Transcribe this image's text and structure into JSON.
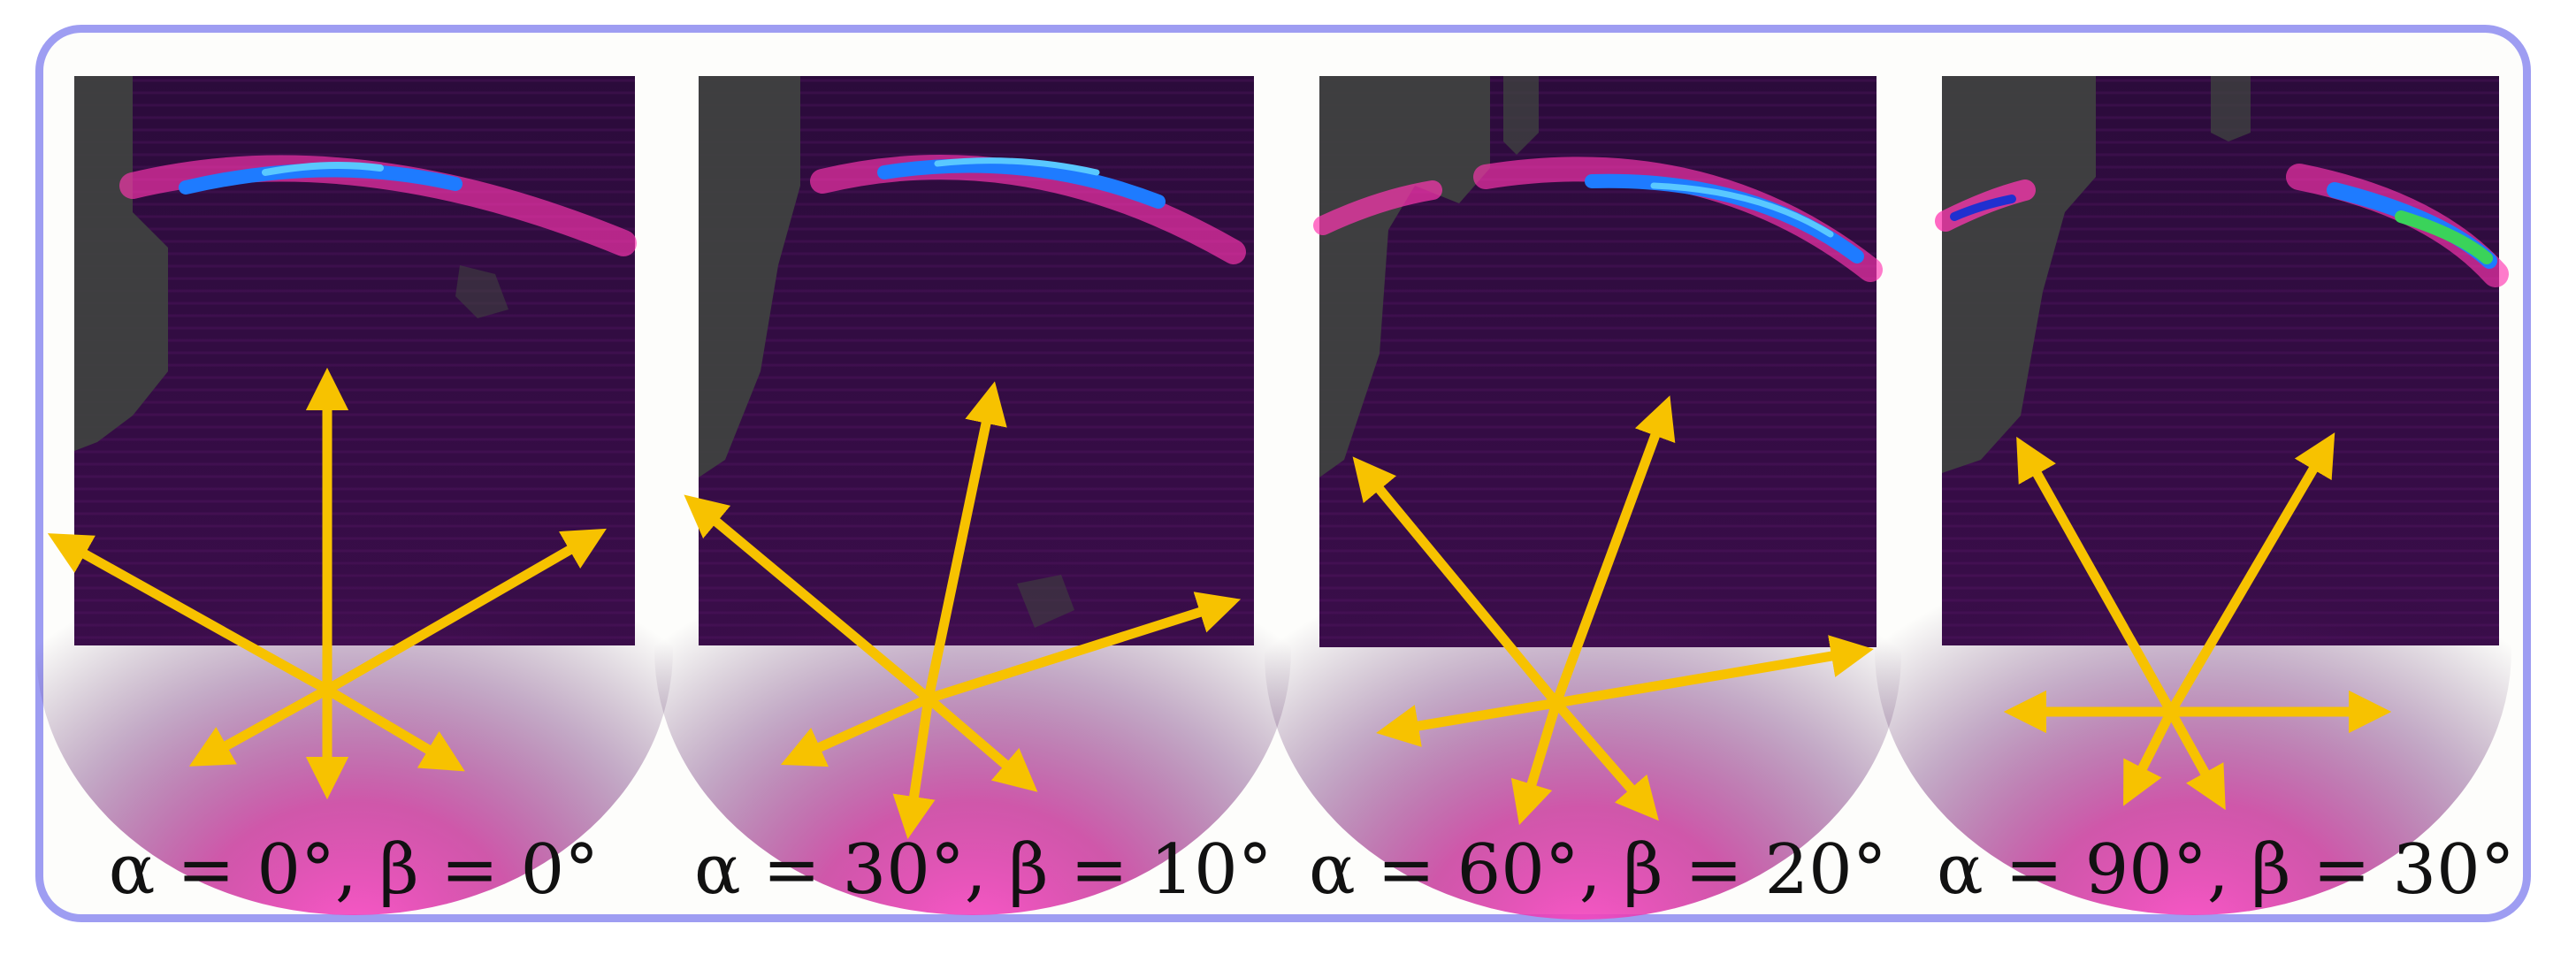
{
  "panels": [
    {
      "alpha": "α = 0",
      "beta": "β = 0",
      "alpha_deg": 0,
      "beta_deg": 0,
      "caption": "α = 0°, β = 0°"
    },
    {
      "alpha": "α = 30",
      "beta": "β = 10",
      "alpha_deg": 30,
      "beta_deg": 10,
      "caption": "α = 30°, β = 10°"
    },
    {
      "alpha": "α = 60",
      "beta": "β = 20",
      "alpha_deg": 60,
      "beta_deg": 20,
      "caption": "α = 60°, β = 20°"
    },
    {
      "alpha": "α = 90",
      "beta": "β = 30",
      "alpha_deg": 90,
      "beta_deg": 30,
      "caption": "α = 90°, β = 30°"
    }
  ],
  "colors": {
    "frame_border": "#9e9df2",
    "image_background": "#2a0a38",
    "grey_patch": "#3f4140",
    "arc_outer": "#ff36b0",
    "arc_inner": "#1e7bff",
    "arc_peak": "#3ad35a",
    "arrow": "#f7c200"
  }
}
